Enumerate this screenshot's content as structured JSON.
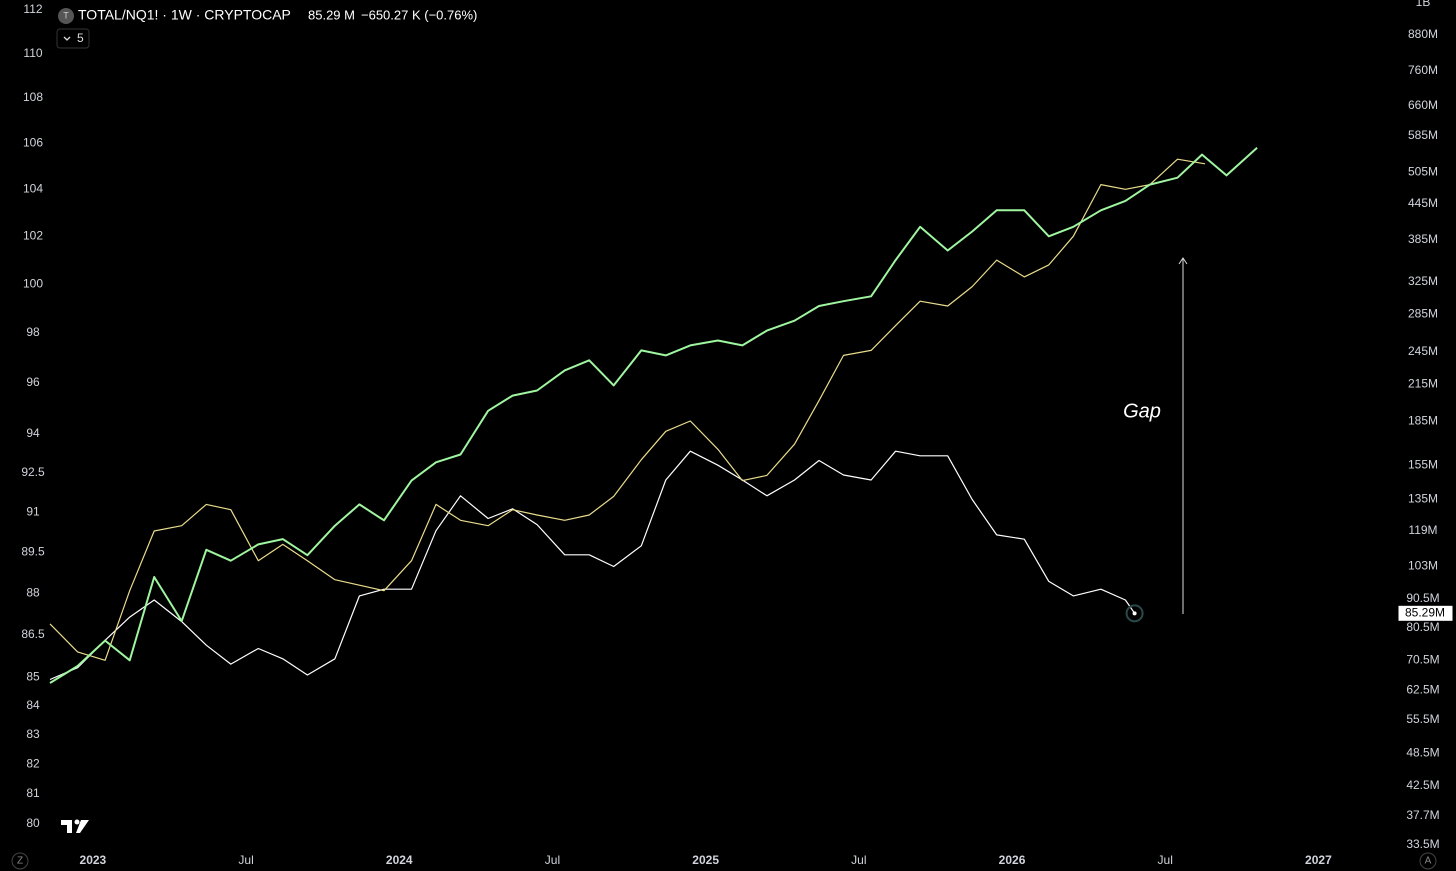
{
  "header": {
    "symbol": "TOTAL/NQ1! · 1W · CRYPTOCAP",
    "price": "85.29 M",
    "change": "−650.27 K (−0.76%)",
    "indicator_count": 5,
    "left_button": "Z",
    "right_button": "A"
  },
  "chart_data": {
    "type": "line",
    "log_scale": true,
    "grid": false,
    "annotation": "Gap",
    "xlim": [
      2022.86,
      2027.25
    ],
    "xticks": [
      {
        "value": 2023,
        "label": "2023"
      },
      {
        "value": 2023.5,
        "label": "Jul"
      },
      {
        "value": 2024,
        "label": "2024"
      },
      {
        "value": 2024.5,
        "label": "Jul"
      },
      {
        "value": 2025,
        "label": "2025"
      },
      {
        "value": 2025.5,
        "label": "Jul"
      },
      {
        "value": 2026,
        "label": "2026"
      },
      {
        "value": 2026.5,
        "label": "Jul"
      },
      {
        "value": 2027,
        "label": "2027"
      }
    ],
    "ylim": [
      80,
      112
    ],
    "yticks": [
      112,
      110,
      108,
      106,
      104,
      102,
      100,
      98,
      96,
      94,
      92.5,
      91,
      89.5,
      88,
      86.5,
      85,
      84,
      83,
      82,
      81,
      80
    ],
    "y2lim": [
      33500000,
      1000000000
    ],
    "y2ticks": [
      {
        "value": 1000000000,
        "label": "1B"
      },
      {
        "value": 880000000,
        "label": "880M"
      },
      {
        "value": 760000000,
        "label": "760M"
      },
      {
        "value": 660000000,
        "label": "660M"
      },
      {
        "value": 585000000,
        "label": "585M"
      },
      {
        "value": 505000000,
        "label": "505M"
      },
      {
        "value": 445000000,
        "label": "445M"
      },
      {
        "value": 385000000,
        "label": "385M"
      },
      {
        "value": 325000000,
        "label": "325M"
      },
      {
        "value": 285000000,
        "label": "285M"
      },
      {
        "value": 245000000,
        "label": "245M"
      },
      {
        "value": 215000000,
        "label": "215M"
      },
      {
        "value": 185000000,
        "label": "185M"
      },
      {
        "value": 155000000,
        "label": "155M"
      },
      {
        "value": 135000000,
        "label": "135M"
      },
      {
        "value": 119000000,
        "label": "119M"
      },
      {
        "value": 103000000,
        "label": "103M"
      },
      {
        "value": 90500000,
        "label": "90.5M"
      },
      {
        "value": 80500000,
        "label": "80.5M"
      },
      {
        "value": 70500000,
        "label": "70.5M"
      },
      {
        "value": 62500000,
        "label": "62.5M"
      },
      {
        "value": 55500000,
        "label": "55.5M"
      },
      {
        "value": 48500000,
        "label": "48.5M"
      },
      {
        "value": 42500000,
        "label": "42.5M"
      },
      {
        "value": 37700000,
        "label": "37.7M"
      },
      {
        "value": 33500000,
        "label": "33.5M"
      }
    ],
    "series": [
      {
        "color": "#ffffff",
        "axis": "y2",
        "last_value_label": "85.29M",
        "x": [
          2022.86,
          2022.95,
          2023.04,
          2023.12,
          2023.2,
          2023.29,
          2023.37,
          2023.45,
          2023.54,
          2023.62,
          2023.7,
          2023.79,
          2023.87,
          2023.95,
          2024.04,
          2024.12,
          2024.2,
          2024.29,
          2024.37,
          2024.45,
          2024.54,
          2024.62,
          2024.7,
          2024.79,
          2024.87,
          2024.95,
          2025.04,
          2025.12,
          2025.2,
          2025.29,
          2025.37,
          2025.45,
          2025.54,
          2025.62,
          2025.7,
          2025.79,
          2025.87,
          2025.95,
          2026.04,
          2026.12,
          2026.2,
          2026.29,
          2026.37,
          2026.4
        ],
        "values": [
          65300000,
          68500000,
          76500000,
          84000000,
          90000000,
          82500000,
          75000000,
          69500000,
          74000000,
          71000000,
          66500000,
          71000000,
          91500000,
          94000000,
          94000000,
          119000000,
          137000000,
          125000000,
          130000000,
          122000000,
          108000000,
          108000000,
          103000000,
          112000000,
          146000000,
          164000000,
          155000000,
          146000000,
          137000000,
          146000000,
          158000000,
          149000000,
          146000000,
          164000000,
          161000000,
          161000000,
          135000000,
          117000000,
          115000000,
          97000000,
          91500000,
          94000000,
          90000000,
          85290000
        ]
      },
      {
        "color": "#e9dc8c",
        "axis": "y",
        "x": [
          2022.86,
          2022.95,
          2023.04,
          2023.12,
          2023.2,
          2023.29,
          2023.37,
          2023.45,
          2023.54,
          2023.62,
          2023.7,
          2023.79,
          2023.87,
          2023.95,
          2024.04,
          2024.12,
          2024.2,
          2024.29,
          2024.37,
          2024.45,
          2024.54,
          2024.62,
          2024.7,
          2024.79,
          2024.87,
          2024.95,
          2025.04,
          2025.12,
          2025.2,
          2025.29,
          2025.37,
          2025.45,
          2025.54,
          2025.62,
          2025.7,
          2025.79,
          2025.87,
          2025.95,
          2026.04,
          2026.12,
          2026.2,
          2026.29,
          2026.37,
          2026.45,
          2026.54,
          2026.63
        ],
        "values": [
          86.9,
          85.9,
          85.6,
          88.1,
          90.3,
          90.5,
          91.3,
          91.1,
          89.2,
          89.8,
          89.2,
          88.5,
          88.3,
          88.1,
          89.2,
          91.3,
          90.7,
          90.5,
          91.1,
          90.9,
          90.7,
          90.9,
          91.6,
          93,
          94.1,
          94.5,
          93.4,
          92.2,
          92.4,
          93.6,
          95.3,
          97.1,
          97.3,
          98.3,
          99.3,
          99.1,
          99.9,
          101,
          100.3,
          100.8,
          102,
          104.2,
          104,
          104.2,
          105.3,
          105.1
        ]
      },
      {
        "color": "#9ff5a0",
        "axis": "y",
        "x": [
          2022.86,
          2022.95,
          2023.04,
          2023.12,
          2023.2,
          2023.29,
          2023.37,
          2023.45,
          2023.54,
          2023.62,
          2023.7,
          2023.79,
          2023.87,
          2023.95,
          2024.04,
          2024.12,
          2024.2,
          2024.29,
          2024.37,
          2024.45,
          2024.54,
          2024.62,
          2024.7,
          2024.79,
          2024.87,
          2024.95,
          2025.04,
          2025.12,
          2025.2,
          2025.29,
          2025.37,
          2025.45,
          2025.54,
          2025.62,
          2025.7,
          2025.79,
          2025.87,
          2025.95,
          2026.04,
          2026.12,
          2026.2,
          2026.29,
          2026.37,
          2026.45,
          2026.54,
          2026.62,
          2026.7,
          2026.8
        ],
        "values": [
          84.8,
          85.4,
          86.3,
          85.6,
          88.6,
          87,
          89.6,
          89.2,
          89.8,
          90,
          89.4,
          90.5,
          91.3,
          90.7,
          92.2,
          92.9,
          93.2,
          94.9,
          95.5,
          95.7,
          96.5,
          96.9,
          95.9,
          97.3,
          97.1,
          97.5,
          97.7,
          97.5,
          98.1,
          98.5,
          99.1,
          99.3,
          99.5,
          101,
          102.4,
          101.4,
          102.2,
          103.1,
          103.1,
          102,
          102.4,
          103.1,
          103.5,
          104.2,
          104.5,
          105.5,
          104.6,
          105.8
        ]
      }
    ]
  }
}
